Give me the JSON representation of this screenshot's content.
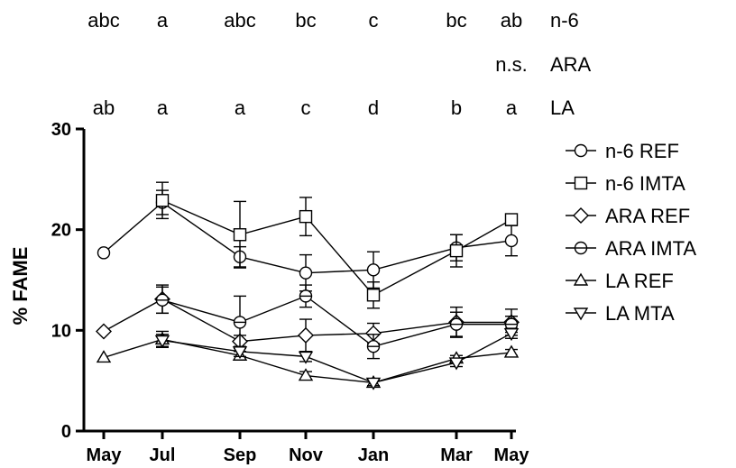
{
  "chart_data": {
    "type": "line",
    "xlabel": "",
    "ylabel": "% FAME",
    "ylim": [
      0,
      30
    ],
    "yticks": [
      "0",
      "10",
      "20",
      "30"
    ],
    "categories": [
      "May",
      "Jul",
      "Sep",
      "Nov",
      "Jan",
      "Mar",
      "May"
    ],
    "legend_position": "right",
    "series": [
      {
        "name": "n-6 REF",
        "marker": "circle",
        "values": [
          17.7,
          22.7,
          17.3,
          15.7,
          16.0,
          18.2,
          18.9
        ],
        "errors": [
          0,
          1.2,
          1.0,
          1.8,
          1.8,
          1.3,
          1.5
        ]
      },
      {
        "name": "n-6 IMTA",
        "marker": "square",
        "values": [
          null,
          22.9,
          19.5,
          21.3,
          13.5,
          17.9,
          21.0
        ],
        "errors": [
          0,
          1.8,
          3.3,
          1.9,
          1.3,
          1.6,
          0.4
        ]
      },
      {
        "name": "ARA REF",
        "marker": "diamond",
        "values": [
          9.9,
          13.1,
          8.9,
          9.5,
          9.7,
          10.8,
          10.8
        ],
        "errors": [
          0,
          1.4,
          0.6,
          1.6,
          1.0,
          1.5,
          1.3
        ]
      },
      {
        "name": "ARA IMTA",
        "marker": "hcircle",
        "values": [
          null,
          13.0,
          10.8,
          13.4,
          8.4,
          10.6,
          10.6
        ],
        "errors": [
          0,
          1.3,
          2.6,
          1.1,
          1.2,
          1.2,
          0.8
        ]
      },
      {
        "name": "LA REF",
        "marker": "triangle",
        "values": [
          7.3,
          9.1,
          7.5,
          5.5,
          4.8,
          7.2,
          7.8
        ],
        "errors": [
          0,
          0.8,
          0.4,
          0.4,
          0.3,
          0.3,
          0.3
        ]
      },
      {
        "name": "LA MTA",
        "marker": "tridown",
        "values": [
          null,
          9.0,
          7.9,
          7.4,
          4.8,
          6.8,
          9.7
        ],
        "errors": [
          0,
          0.6,
          0.5,
          0.5,
          0.3,
          0.4,
          0.5
        ]
      }
    ],
    "annotations": [
      {
        "label": "n-6",
        "letters": [
          "abc",
          "a",
          "abc",
          "bc",
          "c",
          "bc",
          "ab"
        ]
      },
      {
        "label": "ARA",
        "letters": [
          "",
          "",
          "",
          "",
          "",
          "",
          "n.s."
        ]
      },
      {
        "label": "LA",
        "letters": [
          "ab",
          "a",
          "a",
          "c",
          "d",
          "b",
          "a"
        ]
      }
    ]
  }
}
